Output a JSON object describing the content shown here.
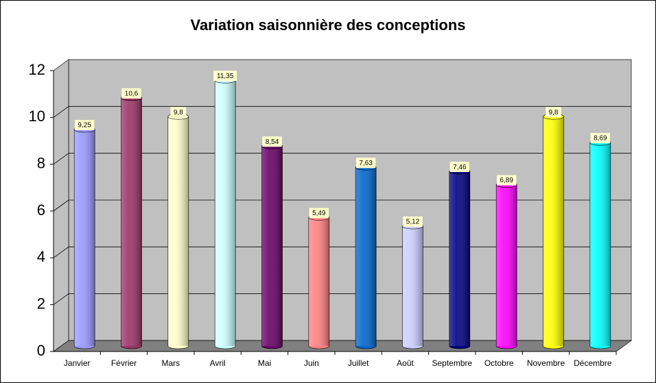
{
  "chart_data": {
    "type": "bar",
    "title": "Variation saisonnière des conceptions",
    "categories": [
      "Janvier",
      "Février",
      "Mars",
      "Avril",
      "Mai",
      "Juin",
      "Juillet",
      "Août",
      "Septembre",
      "Octobre",
      "Novembre",
      "Décembre"
    ],
    "values": [
      9.25,
      10.6,
      9.8,
      11.35,
      8.54,
      5.49,
      7.63,
      5.12,
      7.46,
      6.89,
      9.8,
      8.69
    ],
    "value_labels": [
      "9,25",
      "10,6",
      "9,8",
      "11,35",
      "8,54",
      "5,49",
      "7,63",
      "5,12",
      "7,46",
      "6,89",
      "9,8",
      "8,69"
    ],
    "colors": [
      "#9999ff",
      "#993366",
      "#ffffcc",
      "#ccffff",
      "#660066",
      "#ff8080",
      "#0066cc",
      "#ccccff",
      "#000080",
      "#ff00ff",
      "#ffff00",
      "#00ffff"
    ],
    "ylim": [
      0,
      12
    ],
    "yticks": [
      0,
      2,
      4,
      6,
      8,
      10,
      12
    ],
    "grid": true
  }
}
